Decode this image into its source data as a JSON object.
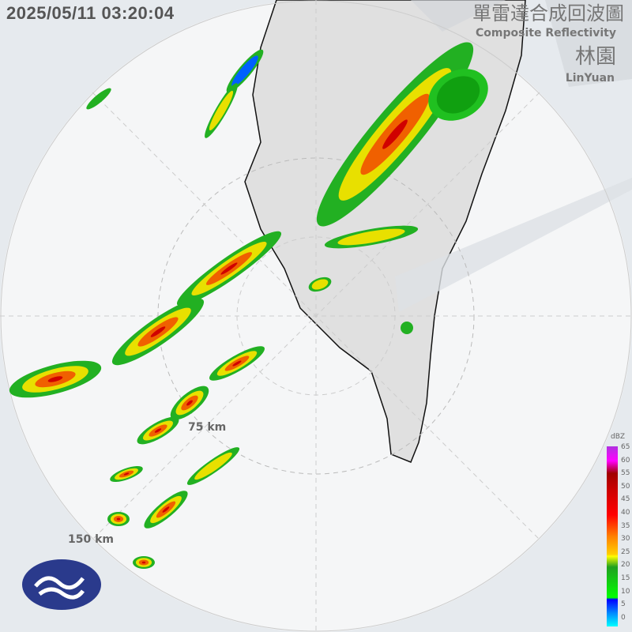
{
  "timestamp": "2025/05/11 03:20:04",
  "title_zh": "單雷達合成回波圖",
  "title_en": "Composite Reflectivity",
  "station_zh": "林園",
  "station_en": "LinYuan",
  "range_rings": [
    "75 km",
    "150 km"
  ],
  "legend": {
    "unit": "dBZ",
    "ticks": [
      "65",
      "60",
      "55",
      "50",
      "45",
      "40",
      "35",
      "30",
      "25",
      "20",
      "15",
      "10",
      "5",
      "0"
    ]
  },
  "colors": {
    "land": "#e0e0e0",
    "outside": "#e6eaee",
    "inside": "#f4f5f6"
  },
  "logo": "CWA"
}
